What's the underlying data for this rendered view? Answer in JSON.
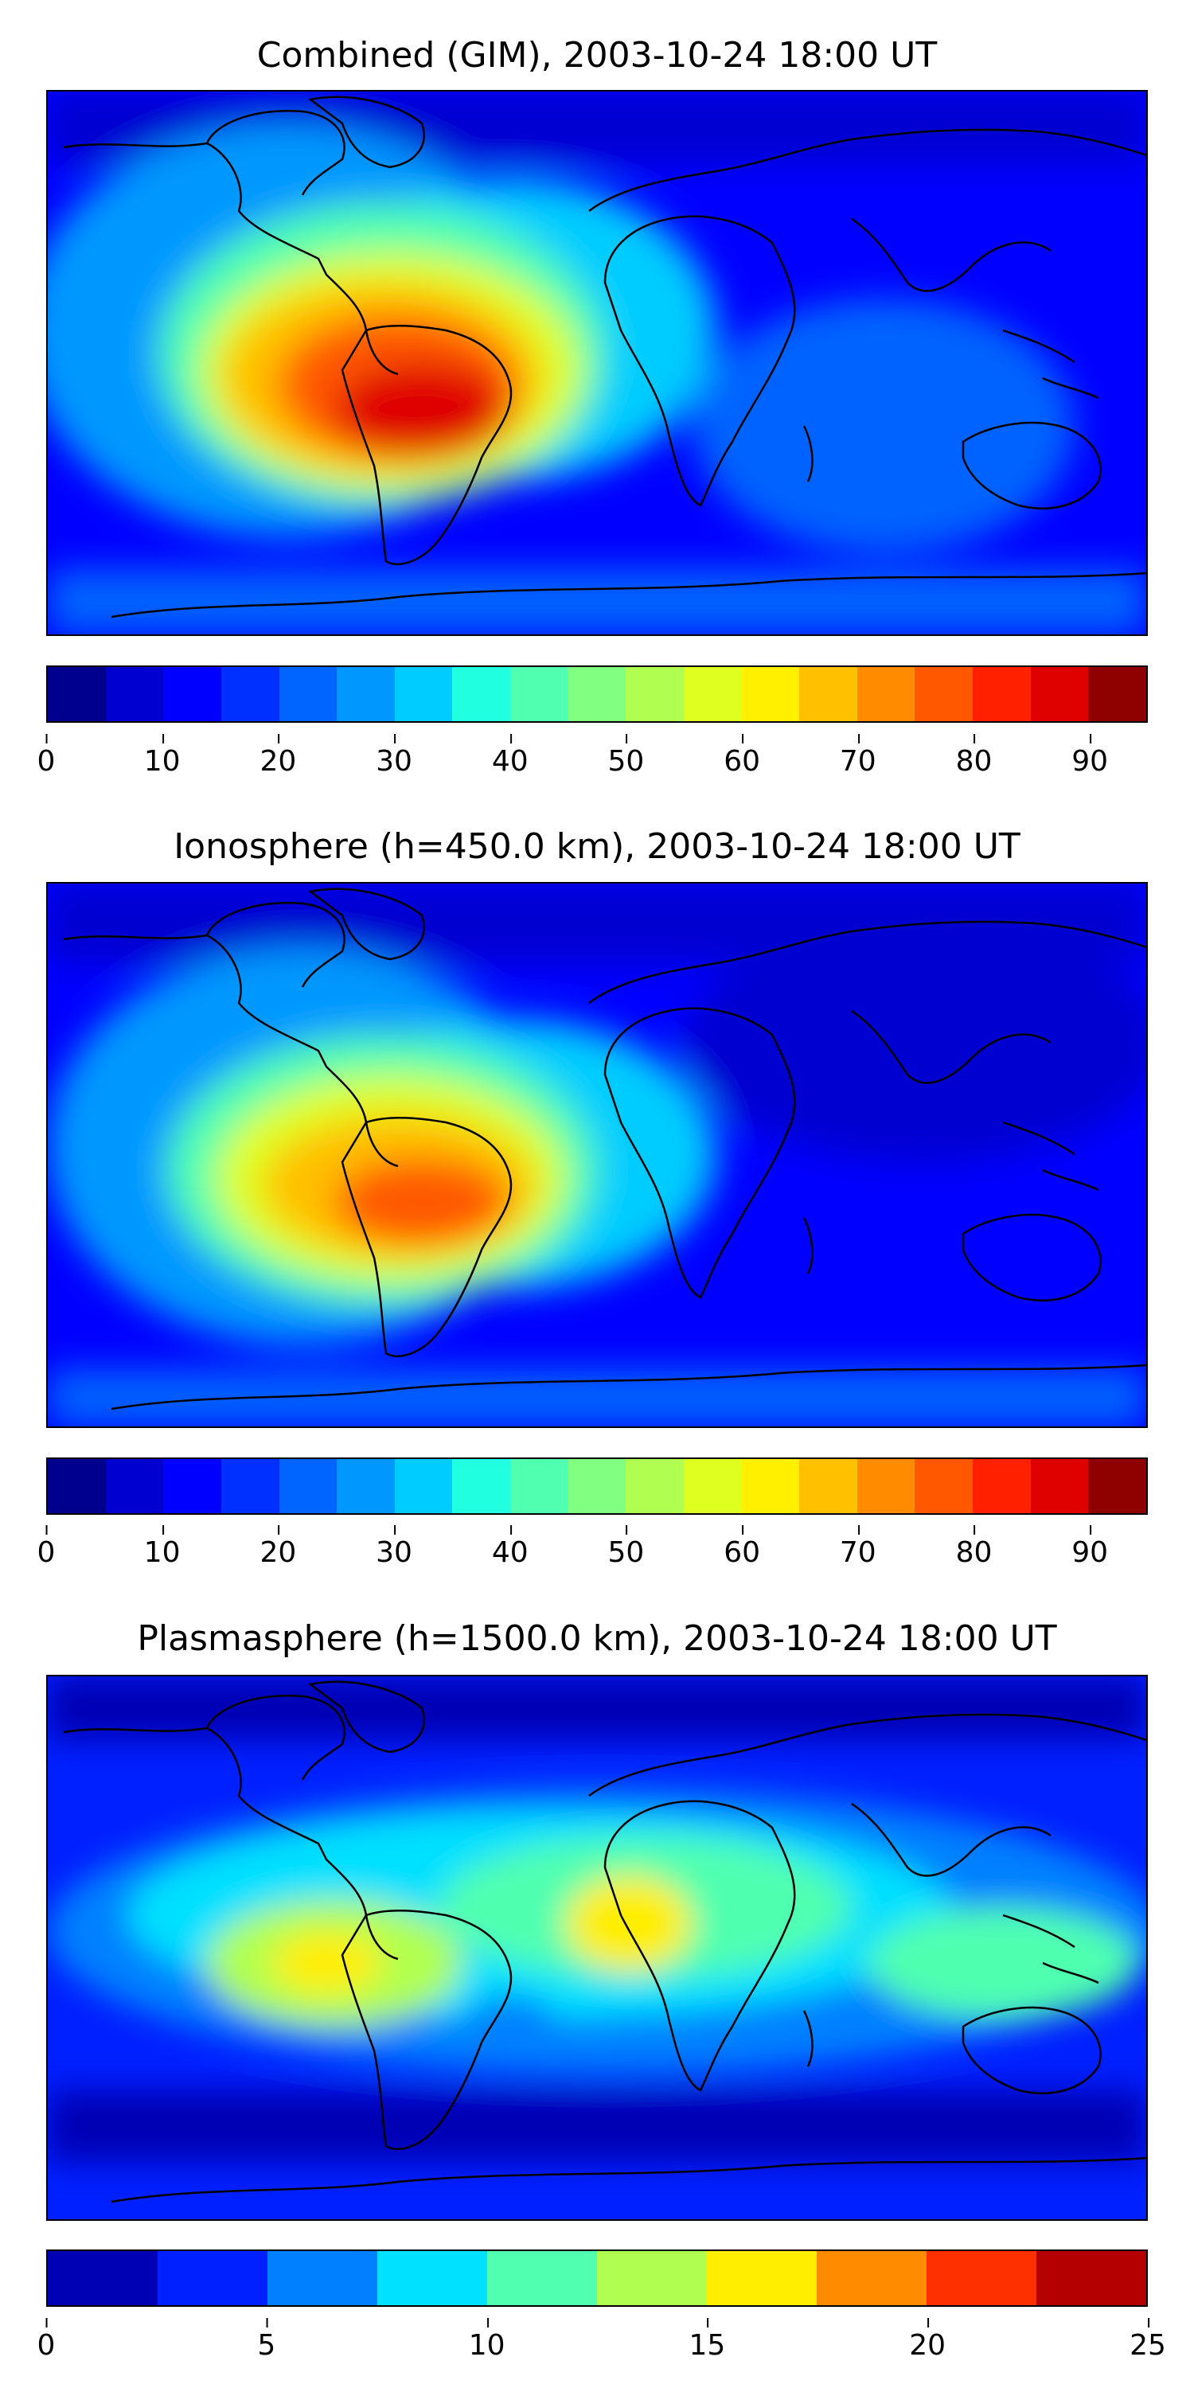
{
  "panels": [
    {
      "id": "combined",
      "title": "Combined (GIM), 2003-10-24 18:00 UT",
      "colorbar": {
        "min": 0,
        "max": 95,
        "step": 5,
        "ticks": [
          "0",
          "10",
          "20",
          "30",
          "40",
          "50",
          "60",
          "70",
          "80",
          "90"
        ],
        "tick_values": [
          0,
          10,
          20,
          30,
          40,
          50,
          60,
          70,
          80,
          90
        ],
        "colors": [
          "#00008f",
          "#0000d0",
          "#0000ff",
          "#0030ff",
          "#0064ff",
          "#0098ff",
          "#00ccff",
          "#20ffdf",
          "#50ffb0",
          "#80ff80",
          "#b0ff50",
          "#dfff20",
          "#fff000",
          "#ffc000",
          "#ff8c00",
          "#ff5800",
          "#ff2000",
          "#df0000",
          "#8f0000"
        ]
      }
    },
    {
      "id": "ionosphere",
      "title": "Ionosphere  (h=450.0 km), 2003-10-24 18:00 UT",
      "colorbar": {
        "min": 0,
        "max": 95,
        "step": 5,
        "ticks": [
          "0",
          "10",
          "20",
          "30",
          "40",
          "50",
          "60",
          "70",
          "80",
          "90"
        ],
        "tick_values": [
          0,
          10,
          20,
          30,
          40,
          50,
          60,
          70,
          80,
          90
        ],
        "colors": [
          "#00008f",
          "#0000d0",
          "#0000ff",
          "#0030ff",
          "#0064ff",
          "#0098ff",
          "#00ccff",
          "#20ffdf",
          "#50ffb0",
          "#80ff80",
          "#b0ff50",
          "#dfff20",
          "#fff000",
          "#ffc000",
          "#ff8c00",
          "#ff5800",
          "#ff2000",
          "#df0000",
          "#8f0000"
        ]
      }
    },
    {
      "id": "plasmasphere",
      "title": "Plasmasphere (h=1500.0 km), 2003-10-24 18:00 UT",
      "colorbar": {
        "min": 0,
        "max": 25,
        "step": 2.5,
        "ticks": [
          "0",
          "5",
          "10",
          "15",
          "20",
          "25"
        ],
        "tick_values": [
          0,
          5,
          10,
          15,
          20,
          25
        ],
        "colors": [
          "#0000b4",
          "#0020ff",
          "#0080ff",
          "#00e0ff",
          "#50ffb0",
          "#b0ff50",
          "#ffee00",
          "#ff8c00",
          "#ff3000",
          "#b40000"
        ]
      }
    }
  ]
}
